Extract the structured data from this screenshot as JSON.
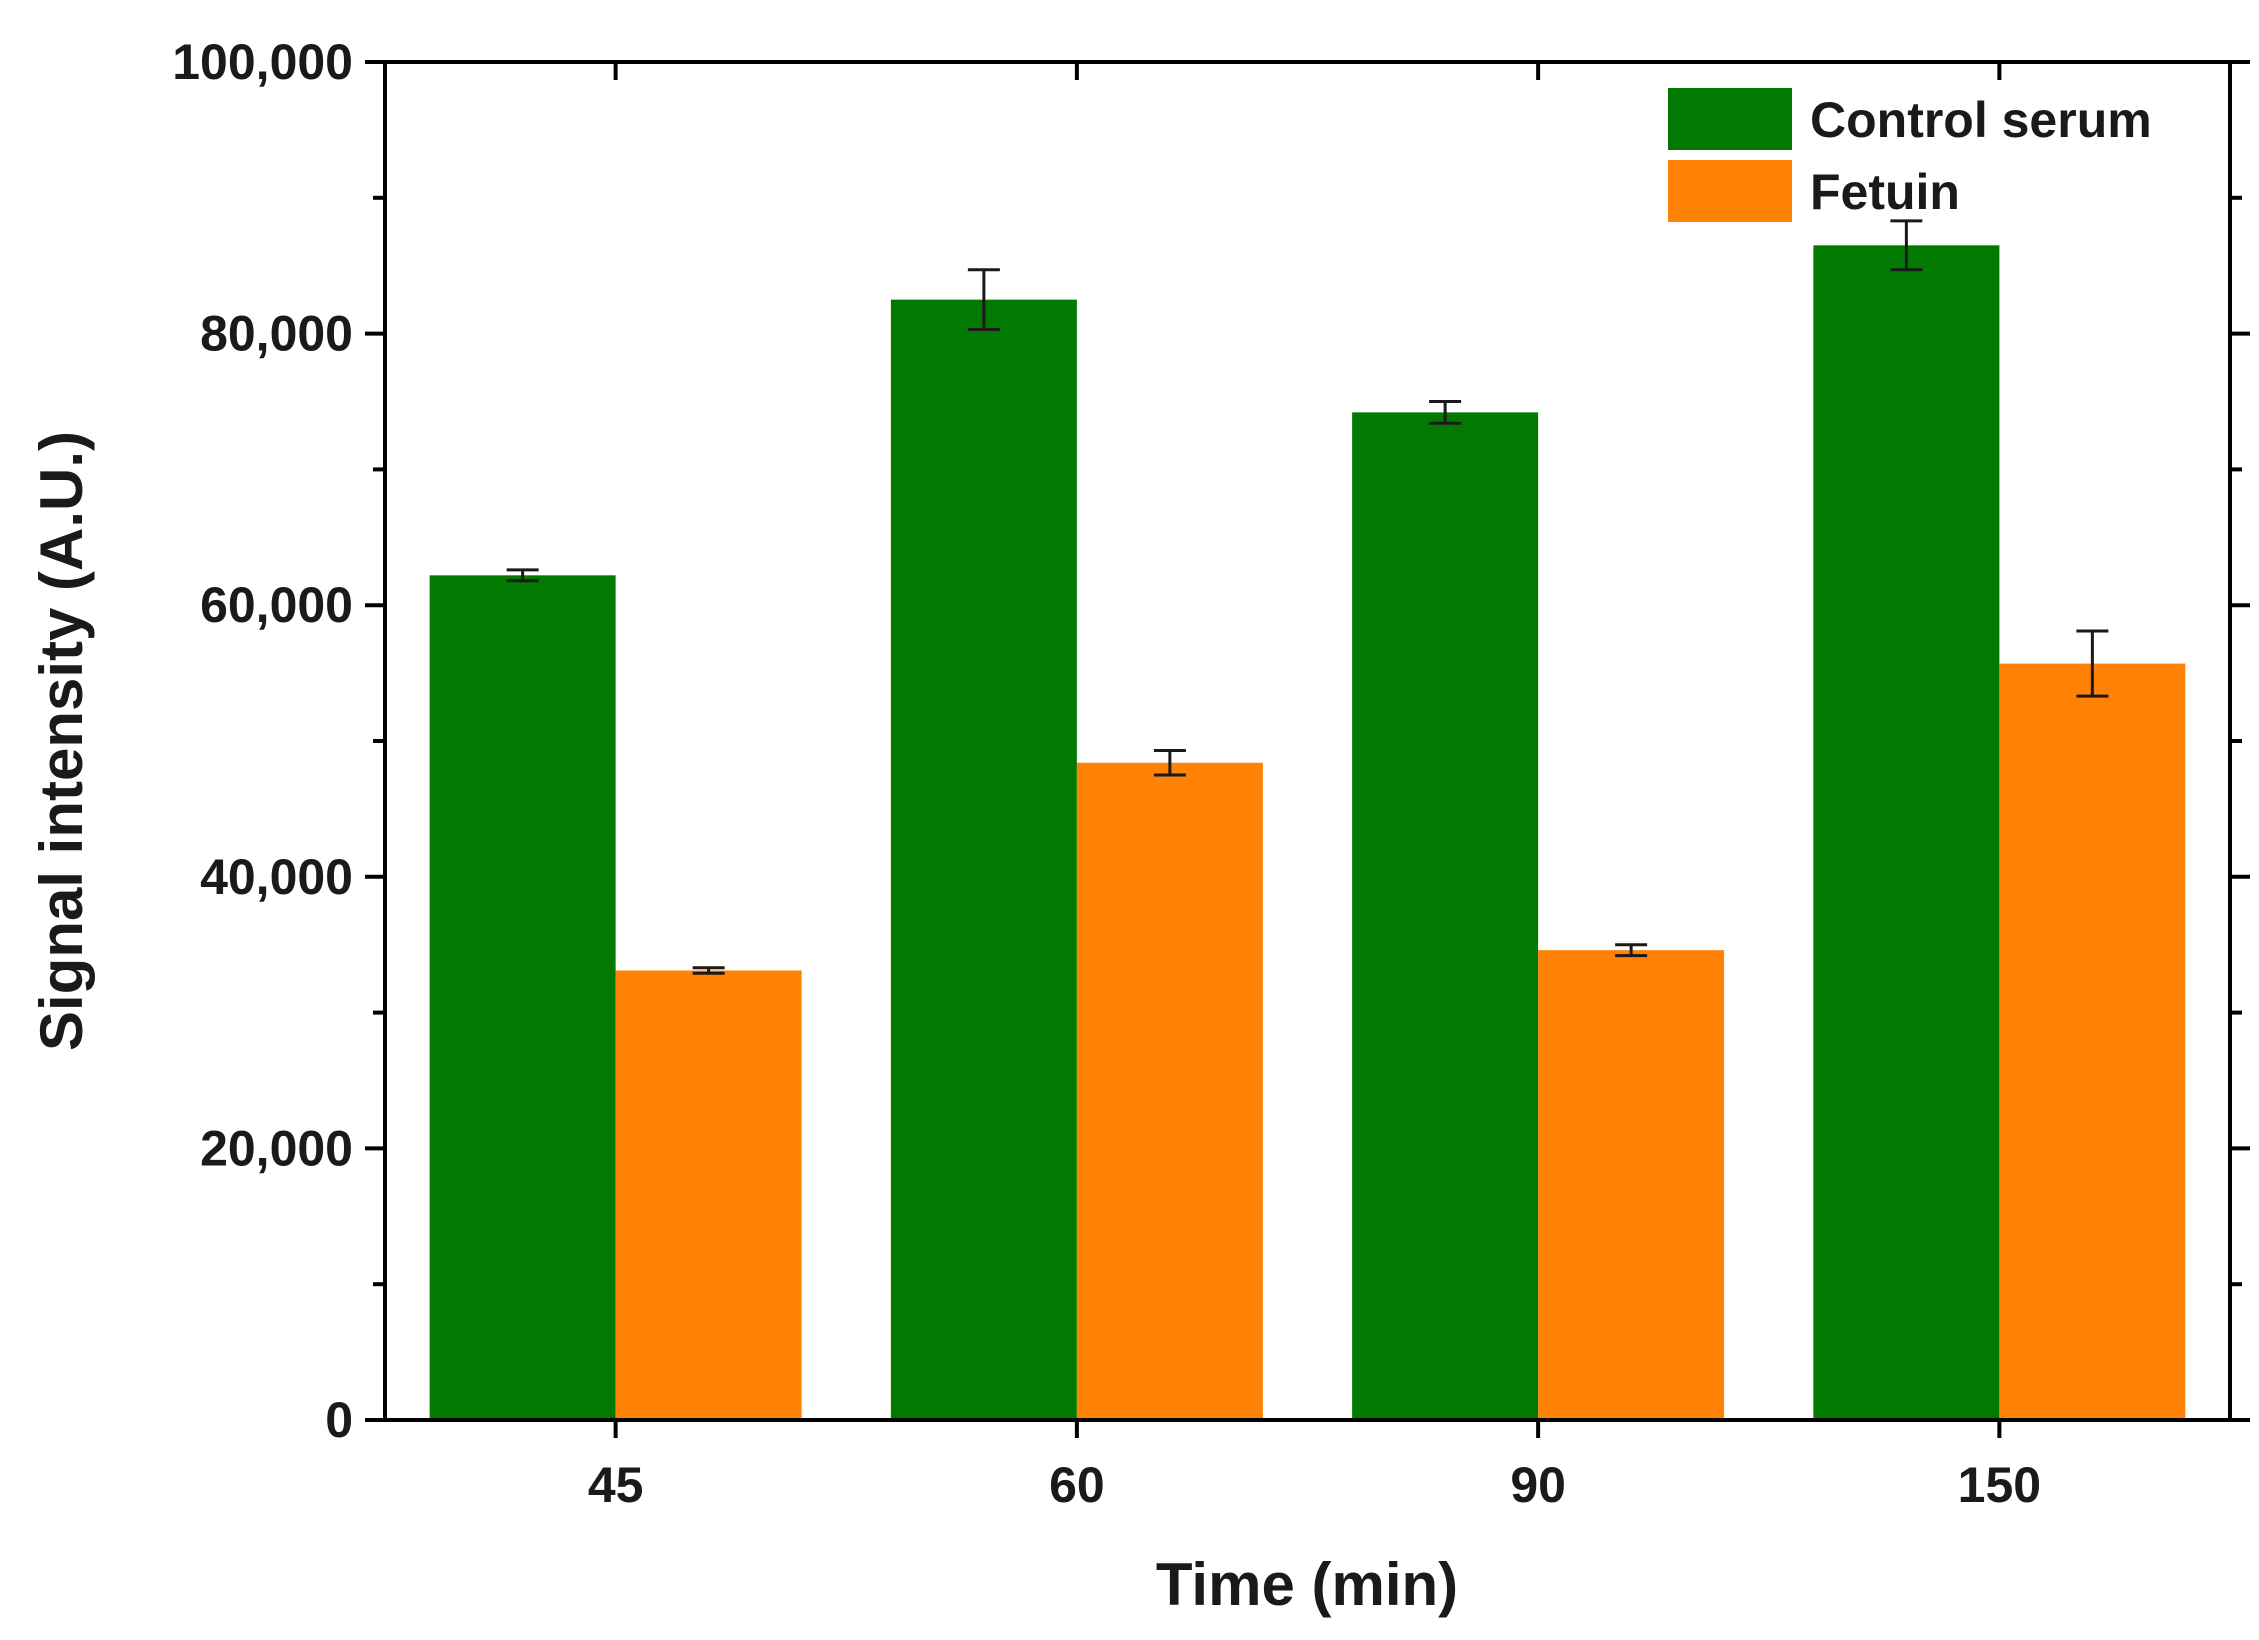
{
  "chart_data": {
    "type": "bar",
    "title": "",
    "xlabel": "Time (min)",
    "ylabel": "Signal intensity (A.U.)",
    "categories": [
      "45",
      "60",
      "90",
      "150"
    ],
    "ylim": [
      0,
      100000
    ],
    "yticks": [
      0,
      20000,
      40000,
      60000,
      80000,
      100000
    ],
    "ytick_labels": [
      "0",
      "20,000",
      "40,000",
      "60,000",
      "80,000",
      "100,000"
    ],
    "series": [
      {
        "name": "Control serum",
        "color": "#027a02",
        "values": [
          62200,
          82500,
          74200,
          86500
        ],
        "errors": [
          400,
          2200,
          800,
          1800
        ]
      },
      {
        "name": "Fetuin",
        "color": "#ff8105",
        "values": [
          33100,
          48400,
          34600,
          55700
        ],
        "errors": [
          200,
          900,
          400,
          2400
        ]
      }
    ],
    "legend_position": "top-right",
    "grid": false
  }
}
